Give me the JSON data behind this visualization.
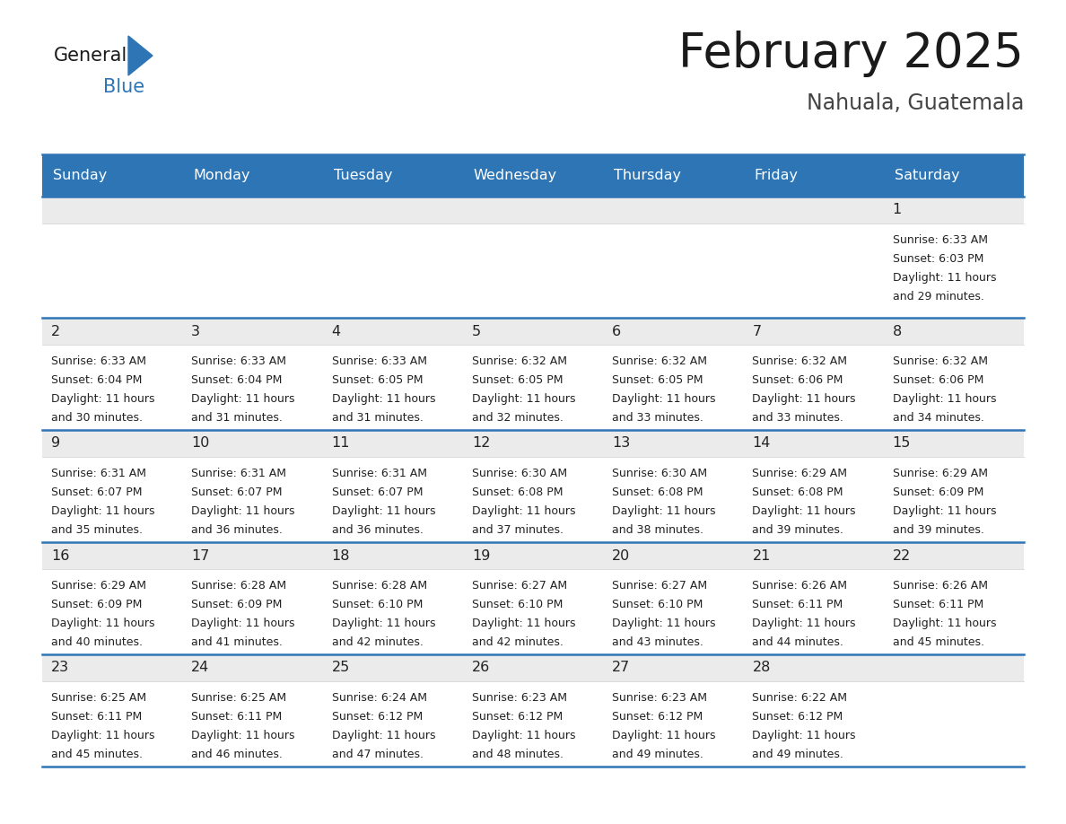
{
  "title": "February 2025",
  "subtitle": "Nahuala, Guatemala",
  "header_bg_color": "#2E75B6",
  "header_text_color": "#FFFFFF",
  "day_names": [
    "Sunday",
    "Monday",
    "Tuesday",
    "Wednesday",
    "Thursday",
    "Friday",
    "Saturday"
  ],
  "grid_line_color": "#2E75B6",
  "day_num_bg_color": "#EBEBEB",
  "cell_bg_color": "#FFFFFF",
  "day_number_color": "#222222",
  "info_text_color": "#222222",
  "title_color": "#1a1a1a",
  "subtitle_color": "#444444",
  "logo_general_color": "#1a1a1a",
  "logo_blue_color": "#2E75B6",
  "calendar_data": [
    [
      null,
      null,
      null,
      null,
      null,
      null,
      {
        "day": 1,
        "sunrise": "6:33 AM",
        "sunset": "6:03 PM",
        "daylight": "11 hours and 29 minutes."
      }
    ],
    [
      {
        "day": 2,
        "sunrise": "6:33 AM",
        "sunset": "6:04 PM",
        "daylight": "11 hours and 30 minutes."
      },
      {
        "day": 3,
        "sunrise": "6:33 AM",
        "sunset": "6:04 PM",
        "daylight": "11 hours and 31 minutes."
      },
      {
        "day": 4,
        "sunrise": "6:33 AM",
        "sunset": "6:05 PM",
        "daylight": "11 hours and 31 minutes."
      },
      {
        "day": 5,
        "sunrise": "6:32 AM",
        "sunset": "6:05 PM",
        "daylight": "11 hours and 32 minutes."
      },
      {
        "day": 6,
        "sunrise": "6:32 AM",
        "sunset": "6:05 PM",
        "daylight": "11 hours and 33 minutes."
      },
      {
        "day": 7,
        "sunrise": "6:32 AM",
        "sunset": "6:06 PM",
        "daylight": "11 hours and 33 minutes."
      },
      {
        "day": 8,
        "sunrise": "6:32 AM",
        "sunset": "6:06 PM",
        "daylight": "11 hours and 34 minutes."
      }
    ],
    [
      {
        "day": 9,
        "sunrise": "6:31 AM",
        "sunset": "6:07 PM",
        "daylight": "11 hours and 35 minutes."
      },
      {
        "day": 10,
        "sunrise": "6:31 AM",
        "sunset": "6:07 PM",
        "daylight": "11 hours and 36 minutes."
      },
      {
        "day": 11,
        "sunrise": "6:31 AM",
        "sunset": "6:07 PM",
        "daylight": "11 hours and 36 minutes."
      },
      {
        "day": 12,
        "sunrise": "6:30 AM",
        "sunset": "6:08 PM",
        "daylight": "11 hours and 37 minutes."
      },
      {
        "day": 13,
        "sunrise": "6:30 AM",
        "sunset": "6:08 PM",
        "daylight": "11 hours and 38 minutes."
      },
      {
        "day": 14,
        "sunrise": "6:29 AM",
        "sunset": "6:08 PM",
        "daylight": "11 hours and 39 minutes."
      },
      {
        "day": 15,
        "sunrise": "6:29 AM",
        "sunset": "6:09 PM",
        "daylight": "11 hours and 39 minutes."
      }
    ],
    [
      {
        "day": 16,
        "sunrise": "6:29 AM",
        "sunset": "6:09 PM",
        "daylight": "11 hours and 40 minutes."
      },
      {
        "day": 17,
        "sunrise": "6:28 AM",
        "sunset": "6:09 PM",
        "daylight": "11 hours and 41 minutes."
      },
      {
        "day": 18,
        "sunrise": "6:28 AM",
        "sunset": "6:10 PM",
        "daylight": "11 hours and 42 minutes."
      },
      {
        "day": 19,
        "sunrise": "6:27 AM",
        "sunset": "6:10 PM",
        "daylight": "11 hours and 42 minutes."
      },
      {
        "day": 20,
        "sunrise": "6:27 AM",
        "sunset": "6:10 PM",
        "daylight": "11 hours and 43 minutes."
      },
      {
        "day": 21,
        "sunrise": "6:26 AM",
        "sunset": "6:11 PM",
        "daylight": "11 hours and 44 minutes."
      },
      {
        "day": 22,
        "sunrise": "6:26 AM",
        "sunset": "6:11 PM",
        "daylight": "11 hours and 45 minutes."
      }
    ],
    [
      {
        "day": 23,
        "sunrise": "6:25 AM",
        "sunset": "6:11 PM",
        "daylight": "11 hours and 45 minutes."
      },
      {
        "day": 24,
        "sunrise": "6:25 AM",
        "sunset": "6:11 PM",
        "daylight": "11 hours and 46 minutes."
      },
      {
        "day": 25,
        "sunrise": "6:24 AM",
        "sunset": "6:12 PM",
        "daylight": "11 hours and 47 minutes."
      },
      {
        "day": 26,
        "sunrise": "6:23 AM",
        "sunset": "6:12 PM",
        "daylight": "11 hours and 48 minutes."
      },
      {
        "day": 27,
        "sunrise": "6:23 AM",
        "sunset": "6:12 PM",
        "daylight": "11 hours and 49 minutes."
      },
      {
        "day": 28,
        "sunrise": "6:22 AM",
        "sunset": "6:12 PM",
        "daylight": "11 hours and 49 minutes."
      },
      null
    ]
  ]
}
